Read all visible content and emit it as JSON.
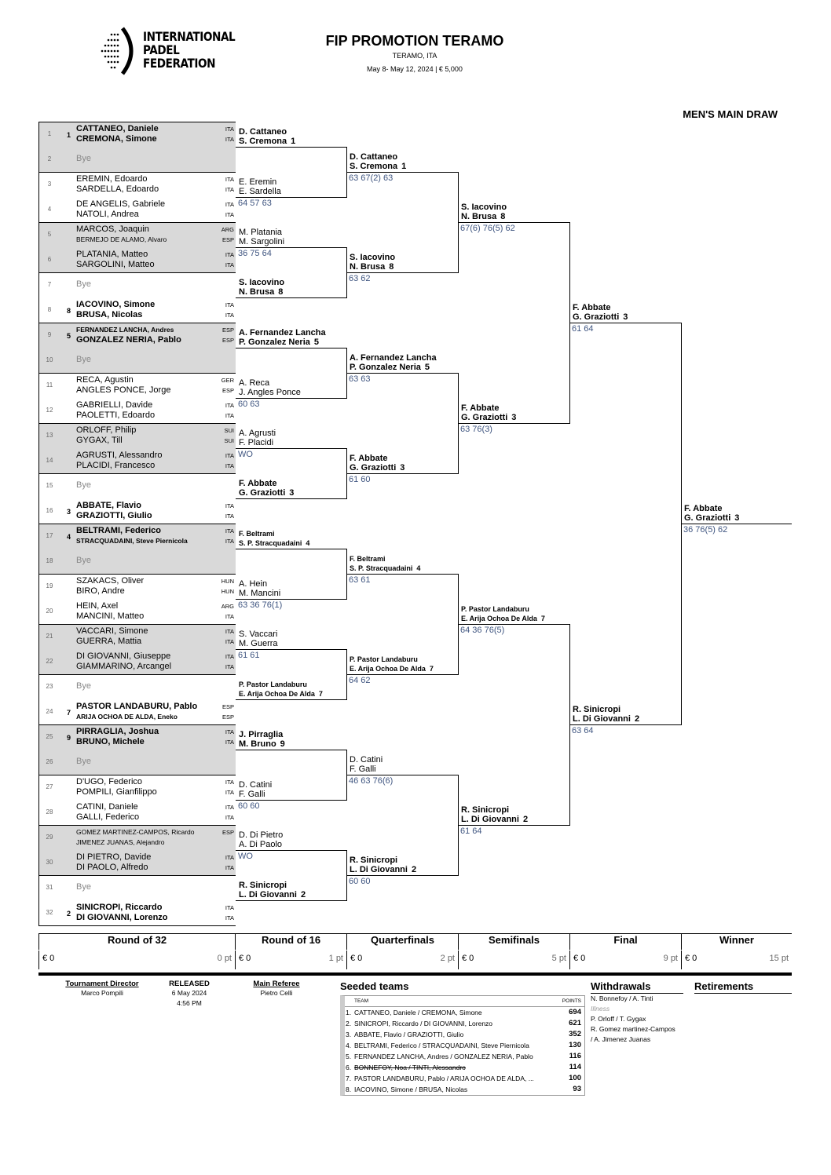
{
  "logo": {
    "lines": [
      "INTERNATIONAL",
      "PADEL",
      "FEDERATION"
    ]
  },
  "header": {
    "title": "FIP PROMOTION TERAMO",
    "location": "TERAMO, ITA",
    "dates": "May 8- May 12, 2024  |  € 5,000",
    "draw_title": "MEN'S MAIN DRAW"
  },
  "entries": [
    {
      "num": "1",
      "seed": "1",
      "players": [
        {
          "name": "CATTANEO, Daniele",
          "nat": "ITA"
        },
        {
          "name": "CREMONA, Simone",
          "nat": "ITA"
        }
      ]
    },
    {
      "num": "2",
      "bye": "Bye"
    },
    {
      "num": "3",
      "players": [
        {
          "name": "EREMIN, Edoardo",
          "nat": "ITA"
        },
        {
          "name": "SARDELLA, Edoardo",
          "nat": "ITA"
        }
      ]
    },
    {
      "num": "4",
      "players": [
        {
          "name": "DE ANGELIS, Gabriele",
          "nat": "ITA"
        },
        {
          "name": "NATOLI, Andrea",
          "nat": "ITA"
        }
      ]
    },
    {
      "num": "5",
      "players": [
        {
          "name": "MARCOS, Joaquin",
          "nat": "ARG"
        },
        {
          "name": "BERMEJO DE ALAMO, Alvaro",
          "nat": "ESP"
        }
      ]
    },
    {
      "num": "6",
      "players": [
        {
          "name": "PLATANIA, Matteo",
          "nat": "ITA"
        },
        {
          "name": "SARGOLINI, Matteo",
          "nat": "ITA"
        }
      ]
    },
    {
      "num": "7",
      "bye": "Bye"
    },
    {
      "num": "8",
      "seed": "8",
      "players": [
        {
          "name": "IACOVINO, Simone",
          "nat": "ITA"
        },
        {
          "name": "BRUSA, Nicolas",
          "nat": "ITA"
        }
      ]
    },
    {
      "num": "9",
      "seed": "5",
      "players": [
        {
          "name": "FERNANDEZ LANCHA, Andres",
          "nat": "ESP"
        },
        {
          "name": "GONZALEZ NERIA, Pablo",
          "nat": "ESP"
        }
      ]
    },
    {
      "num": "10",
      "bye": "Bye"
    },
    {
      "num": "11",
      "players": [
        {
          "name": "RECA, Agustin",
          "nat": "GER"
        },
        {
          "name": "ANGLES PONCE, Jorge",
          "nat": "ESP"
        }
      ]
    },
    {
      "num": "12",
      "players": [
        {
          "name": "GABRIELLI, Davide",
          "nat": "ITA"
        },
        {
          "name": "PAOLETTI, Edoardo",
          "nat": "ITA"
        }
      ]
    },
    {
      "num": "13",
      "players": [
        {
          "name": "ORLOFF, Philip",
          "nat": "SUI"
        },
        {
          "name": "GYGAX, Till",
          "nat": "SUI"
        }
      ]
    },
    {
      "num": "14",
      "players": [
        {
          "name": "AGRUSTI, Alessandro",
          "nat": "ITA"
        },
        {
          "name": "PLACIDI, Francesco",
          "nat": "ITA"
        }
      ]
    },
    {
      "num": "15",
      "bye": "Bye"
    },
    {
      "num": "16",
      "seed": "3",
      "players": [
        {
          "name": "ABBATE, Flavio",
          "nat": "ITA"
        },
        {
          "name": "GRAZIOTTI, Giulio",
          "nat": "ITA"
        }
      ]
    },
    {
      "num": "17",
      "seed": "4",
      "players": [
        {
          "name": "BELTRAMI, Federico",
          "nat": "ITA"
        },
        {
          "name": "STRACQUADAINI, Steve Piernicola",
          "nat": "ITA"
        }
      ]
    },
    {
      "num": "18",
      "bye": "Bye"
    },
    {
      "num": "19",
      "players": [
        {
          "name": "SZAKACS, Oliver",
          "nat": "HUN"
        },
        {
          "name": "BIRO, Andre",
          "nat": "HUN"
        }
      ]
    },
    {
      "num": "20",
      "players": [
        {
          "name": "HEIN, Axel",
          "nat": "ARG"
        },
        {
          "name": "MANCINI, Matteo",
          "nat": "ITA"
        }
      ]
    },
    {
      "num": "21",
      "players": [
        {
          "name": "VACCARI, Simone",
          "nat": "ITA"
        },
        {
          "name": "GUERRA, Mattia",
          "nat": "ITA"
        }
      ]
    },
    {
      "num": "22",
      "players": [
        {
          "name": "DI GIOVANNI, Giuseppe",
          "nat": "ITA"
        },
        {
          "name": "GIAMMARINO, Arcangel",
          "nat": "ITA"
        }
      ]
    },
    {
      "num": "23",
      "bye": "Bye"
    },
    {
      "num": "24",
      "seed": "7",
      "players": [
        {
          "name": "PASTOR LANDABURU, Pablo",
          "nat": "ESP"
        },
        {
          "name": "ARIJA OCHOA DE ALDA, Eneko",
          "nat": "ESP"
        }
      ]
    },
    {
      "num": "25",
      "seed": "9",
      "players": [
        {
          "name": "PIRRAGLIA, Joshua",
          "nat": "ITA"
        },
        {
          "name": "BRUNO, Michele",
          "nat": "ITA"
        }
      ]
    },
    {
      "num": "26",
      "bye": "Bye"
    },
    {
      "num": "27",
      "players": [
        {
          "name": "D'UGO, Federico",
          "nat": "ITA"
        },
        {
          "name": "POMPILI, Gianfilippo",
          "nat": "ITA"
        }
      ]
    },
    {
      "num": "28",
      "players": [
        {
          "name": "CATINI, Daniele",
          "nat": "ITA"
        },
        {
          "name": "GALLI, Federico",
          "nat": "ITA"
        }
      ]
    },
    {
      "num": "29",
      "players": [
        {
          "name": "GOMEZ MARTINEZ-CAMPOS, Ricardo",
          "nat": "ESP"
        },
        {
          "name": "JIMENEZ JUANAS, Alejandro",
          "nat": ""
        }
      ]
    },
    {
      "num": "30",
      "players": [
        {
          "name": "DI PIETRO, Davide",
          "nat": "ITA"
        },
        {
          "name": "DI PAOLO, Alfredo",
          "nat": "ITA"
        }
      ]
    },
    {
      "num": "31",
      "bye": "Bye"
    },
    {
      "num": "32",
      "seed": "2",
      "players": [
        {
          "name": "SINICROPI, Riccardo",
          "nat": "ITA"
        },
        {
          "name": "DI GIOVANNI, Lorenzo",
          "nat": "ITA"
        }
      ]
    }
  ],
  "rounds": [
    [
      {
        "p1": "D. Cattaneo",
        "p2": "S. Cremona",
        "seed": "1",
        "score": ""
      },
      {
        "p1": "E. Eremin",
        "p2": "E. Sardella",
        "score": "64 57 63"
      },
      {
        "p1": "M. Platania",
        "p2": "M. Sargolini",
        "score": "36 75 64"
      },
      {
        "p1": "S. Iacovino",
        "p2": "N. Brusa",
        "seed": "8",
        "score": ""
      },
      {
        "p1": "A. Fernandez Lancha",
        "p2": "P. Gonzalez Neria",
        "seed": "5",
        "score": ""
      },
      {
        "p1": "A. Reca",
        "p2": "J. Angles Ponce",
        "score": "60 63"
      },
      {
        "p1": "A. Agrusti",
        "p2": "F. Placidi",
        "score": "WO"
      },
      {
        "p1": "F. Abbate",
        "p2": "G. Graziotti",
        "seed": "3",
        "score": ""
      },
      {
        "p1": "F. Beltrami",
        "p2": "S. P. Stracquadaini",
        "seed": "4",
        "score": ""
      },
      {
        "p1": "A. Hein",
        "p2": "M. Mancini",
        "score": "63 36 76(1)"
      },
      {
        "p1": "S. Vaccari",
        "p2": "M. Guerra",
        "score": "61 61"
      },
      {
        "p1": "P. Pastor Landaburu",
        "p2": "E. Arija Ochoa De Alda",
        "seed": "7",
        "score": ""
      },
      {
        "p1": "J. Pirraglia",
        "p2": "M. Bruno",
        "seed": "9",
        "score": ""
      },
      {
        "p1": "D. Catini",
        "p2": "F. Galli",
        "score": "60 60"
      },
      {
        "p1": "D. Di Pietro",
        "p2": "A. Di Paolo",
        "score": "WO"
      },
      {
        "p1": "R. Sinicropi",
        "p2": "L. Di Giovanni",
        "seed": "2",
        "score": ""
      }
    ],
    [
      {
        "p1": "D. Cattaneo",
        "p2": "S. Cremona",
        "seed": "1",
        "score": "63 67(2) 63"
      },
      {
        "p1": "S. Iacovino",
        "p2": "N. Brusa",
        "seed": "8",
        "score": "63 62"
      },
      {
        "p1": "A. Fernandez Lancha",
        "p2": "P. Gonzalez Neria",
        "seed": "5",
        "score": "63 63"
      },
      {
        "p1": "F. Abbate",
        "p2": "G. Graziotti",
        "seed": "3",
        "score": "61 60"
      },
      {
        "p1": "F. Beltrami",
        "p2": "S. P. Stracquadaini",
        "seed": "4",
        "score": "63 61"
      },
      {
        "p1": "P. Pastor Landaburu",
        "p2": "E. Arija Ochoa De Alda",
        "seed": "7",
        "score": "64 62"
      },
      {
        "p1": "D. Catini",
        "p2": "F. Galli",
        "score": "46 63 76(6)"
      },
      {
        "p1": "R. Sinicropi",
        "p2": "L. Di Giovanni",
        "seed": "2",
        "score": "60 60"
      }
    ],
    [
      {
        "p1": "S. Iacovino",
        "p2": "N. Brusa",
        "seed": "8",
        "score": "67(6) 76(5) 62"
      },
      {
        "p1": "F. Abbate",
        "p2": "G. Graziotti",
        "seed": "3",
        "score": "63 76(3)"
      },
      {
        "p1": "P. Pastor Landaburu",
        "p2": "E. Arija Ochoa De Alda",
        "seed": "7",
        "score": "64 36 76(5)"
      },
      {
        "p1": "R. Sinicropi",
        "p2": "L. Di Giovanni",
        "seed": "2",
        "score": "61 64"
      }
    ],
    [
      {
        "p1": "F. Abbate",
        "p2": "G. Graziotti",
        "seed": "3",
        "score": "61 64"
      },
      {
        "p1": "R. Sinicropi",
        "p2": "L. Di Giovanni",
        "seed": "2",
        "score": "63 64"
      }
    ],
    [
      {
        "p1": "F. Abbate",
        "p2": "G. Graziotti",
        "seed": "3",
        "score": "36 76(5) 62"
      }
    ]
  ],
  "round_headers": [
    {
      "label": "Round of 32",
      "prize": "€ 0",
      "points": "0 pt"
    },
    {
      "label": "Round of 16",
      "prize": "€ 0",
      "points": "1 pt"
    },
    {
      "label": "Quarterfinals",
      "prize": "€ 0",
      "points": "2 pt"
    },
    {
      "label": "Semifinals",
      "prize": "€ 0",
      "points": "5 pt"
    },
    {
      "label": "Final",
      "prize": "€ 0",
      "points": "9 pt"
    },
    {
      "label": "Winner",
      "prize": "€ 0",
      "points": "15 pt"
    }
  ],
  "footer": {
    "director_label": "Tournament Director",
    "director": "Marco Pompili",
    "released_label": "RELEASED",
    "released_date": "6 May 2024",
    "released_time": "4:56 PM",
    "referee_label": "Main Referee",
    "referee": "Pietro Celli",
    "seeded_title": "Seeded teams",
    "team_col": "TEAM",
    "points_col": "POINTS",
    "seeds": [
      {
        "rank": "1.",
        "team": "CATTANEO, Daniele / CREMONA, Simone",
        "points": "694"
      },
      {
        "rank": "2.",
        "team": "SINICROPI, Riccardo / DI GIOVANNI, Lorenzo",
        "points": "621"
      },
      {
        "rank": "3.",
        "team": "ABBATE, Flavio / GRAZIOTTI, Giulio",
        "points": "352"
      },
      {
        "rank": "4.",
        "team": "BELTRAMI, Federico / STRACQUADAINI, Steve Piernicola",
        "points": "130"
      },
      {
        "rank": "5.",
        "team": "FERNANDEZ LANCHA, Andres / GONZALEZ NERIA, Pablo",
        "points": "116"
      },
      {
        "rank": "6.",
        "team": "BONNEFOY, Noa / TINTI, Alessandro",
        "points": "114",
        "withdrawn": true
      },
      {
        "rank": "7.",
        "team": "PASTOR LANDABURU, Pablo / ARIJA OCHOA DE ALDA, ...",
        "points": "100"
      },
      {
        "rank": "8.",
        "team": "IACOVINO, Simone / BRUSA, Nicolas",
        "points": "93"
      }
    ],
    "withdrawals_title": "Withdrawals",
    "withdrawals": [
      {
        "text": "N. Bonnefoy / A. Tinti",
        "reason": "Illness"
      },
      {
        "text": "P. Orloff / T. Gygax"
      },
      {
        "text": "R. Gomez martinez-Campos"
      },
      {
        "text": "/ A. Jimenez Juanas"
      }
    ],
    "retirements_title": "Retirements"
  },
  "colors": {
    "shade": "#d9d9d9",
    "score": "#3f5580",
    "bye": "#888888"
  }
}
